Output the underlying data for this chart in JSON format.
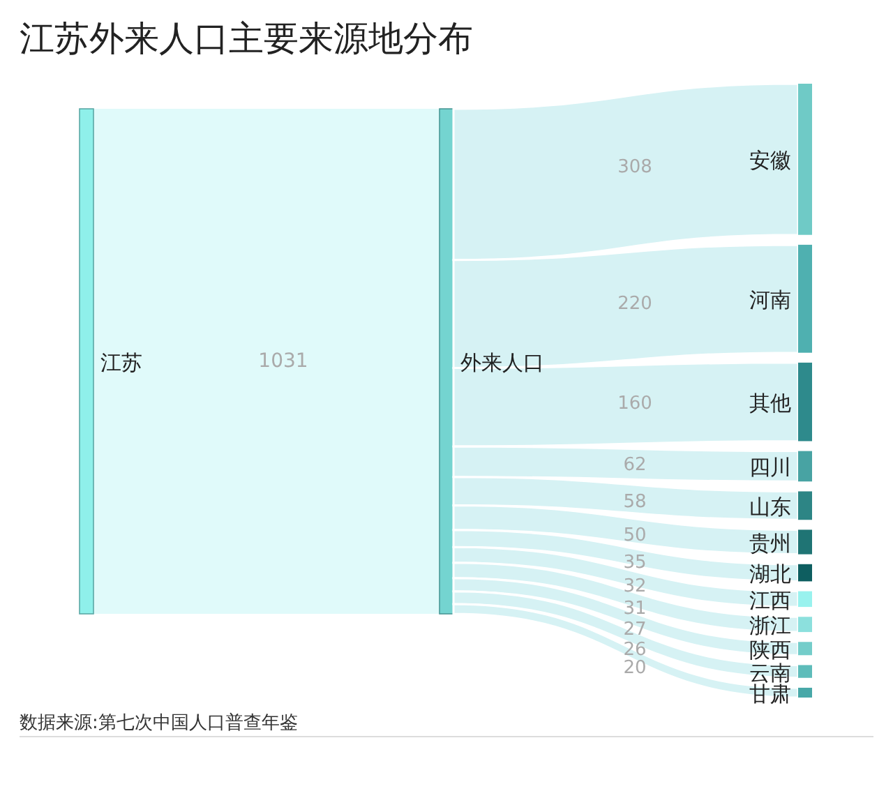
{
  "chart_data": {
    "type": "other",
    "title": "江苏外来人口主要来源地分布",
    "categories": [
      "安徽",
      "河南",
      "其他",
      "四川",
      "山东",
      "贵州",
      "湖北",
      "江西",
      "浙江",
      "陕西",
      "云南",
      "甘肃"
    ],
    "series": [
      {
        "color": "#d6f2f4",
        "values": [
          308,
          220,
          160,
          62,
          58,
          50,
          35,
          32,
          31,
          27,
          26,
          20
        ]
      }
    ],
    "data_labels": true,
    "annotations": [
      "江苏",
      "1031",
      "外来人口",
      "数据来源:第七次中国人口普查年鉴"
    ]
  }
}
